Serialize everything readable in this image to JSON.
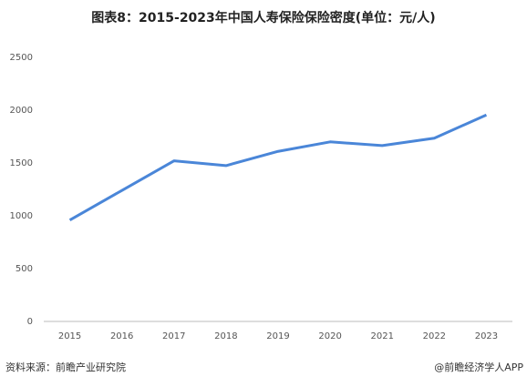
{
  "chart_data": {
    "type": "line",
    "title": "图表8：2015-2023年中国人寿保险保险密度(单位：元/人)",
    "categories": [
      "2015",
      "2016",
      "2017",
      "2018",
      "2019",
      "2020",
      "2021",
      "2022",
      "2023"
    ],
    "series": [
      {
        "name": "保险密度",
        "color": "#4a86d8",
        "values": [
          960,
          1240,
          1520,
          1475,
          1610,
          1700,
          1665,
          1735,
          1955
        ]
      }
    ],
    "ylim": [
      0,
      2500
    ],
    "yticks": [
      0,
      500,
      1000,
      1500,
      2000,
      2500
    ],
    "grid": false,
    "source": "资料来源：前瞻产业研究院",
    "credit": "@前瞻经济学人APP"
  }
}
